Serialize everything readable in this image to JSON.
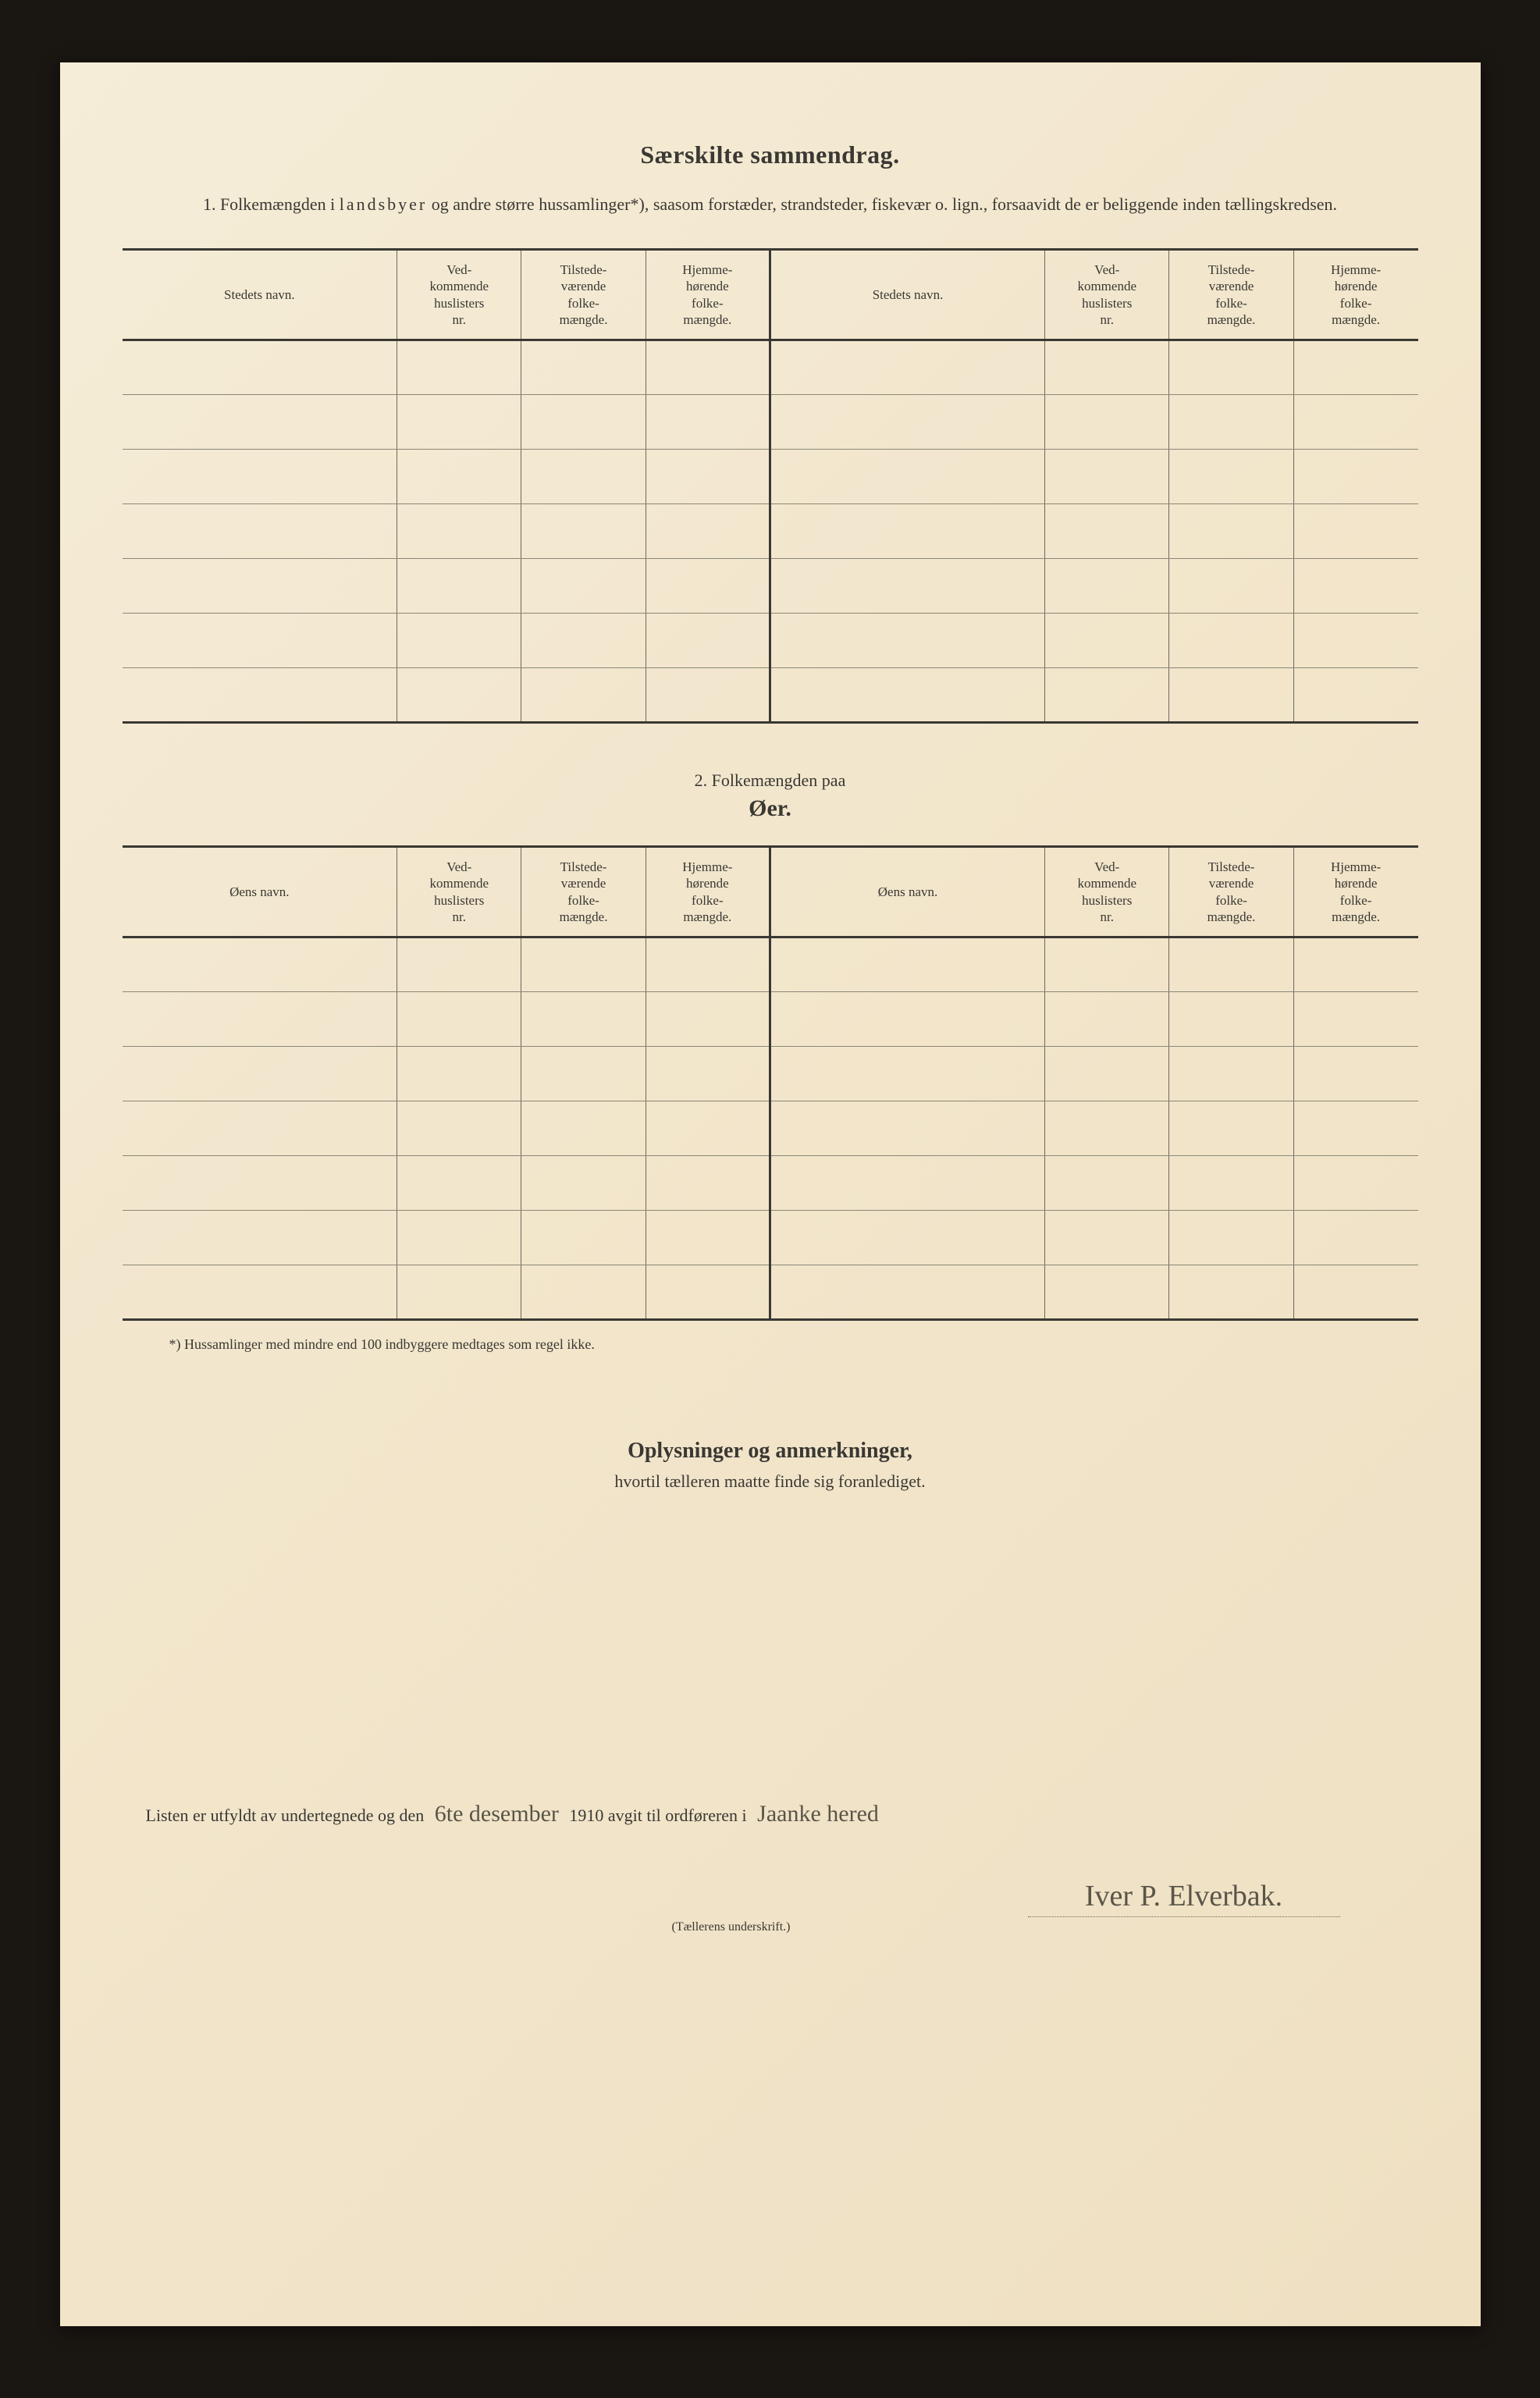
{
  "colors": {
    "page_bg": "#f2e6cc",
    "frame_bg": "#1a1612",
    "text": "#3a3833",
    "rule_heavy": "#3a3833",
    "rule_light": "#8b8776",
    "handwriting": "#5a5548"
  },
  "header": {
    "title": "Særskilte sammendrag.",
    "intro_prefix": "1.   Folkemængden i ",
    "intro_spaced": "landsbyer",
    "intro_rest": " og andre større hussamlinger*), saasom forstæder, strandsteder, fiskevær o. lign., forsaavidt de er beliggende inden tællingskredsen."
  },
  "table1": {
    "cols": {
      "name": "Stedets navn.",
      "huslister": "Ved-\nkommende\nhuslisters\nnr.",
      "tilstede": "Tilstede-\nværende\nfolke-\nmængde.",
      "hjemme": "Hjemme-\nhørende\nfolke-\nmængde."
    },
    "row_count": 7
  },
  "section2": {
    "label": "2.    Folkemængden paa",
    "title": "Øer."
  },
  "table2": {
    "cols": {
      "name": "Øens navn.",
      "huslister": "Ved-\nkommende\nhuslisters\nnr.",
      "tilstede": "Tilstede-\nværende\nfolke-\nmængde.",
      "hjemme": "Hjemme-\nhørende\nfolke-\nmængde."
    },
    "row_count": 7
  },
  "footnote": "*) Hussamlinger med mindre end 100 indbyggere medtages som regel ikke.",
  "notes": {
    "title": "Oplysninger og anmerkninger,",
    "sub": "hvortil tælleren maatte finde sig foranlediget."
  },
  "signature": {
    "line_prefix": "Listen er utfyldt av undertegnede og den ",
    "date_hw": "6te desember",
    "line_mid": " 1910 avgit til ordføreren i ",
    "place_hw": "Jaanke hered",
    "name_hw": "Iver P. Elverbak.",
    "label": "(Tællerens underskrift.)"
  }
}
